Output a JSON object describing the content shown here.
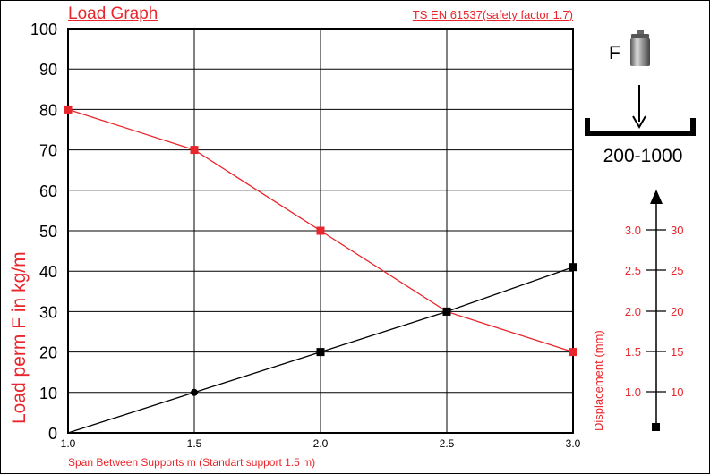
{
  "chart_data": {
    "type": "line",
    "title": "Load Graph",
    "subtitle": "TS EN 61537(safety factor 1.7)",
    "xlabel": "Span Between Supports m (Standart support 1.5 m)",
    "ylabel": "Load perm F in kg/m",
    "xlim": [
      1.0,
      3.0
    ],
    "ylim": [
      0,
      100
    ],
    "x_ticks": [
      "1.0",
      "1.5",
      "2.0",
      "2.5",
      "3.0"
    ],
    "y_ticks": [
      "0",
      "10",
      "20",
      "30",
      "40",
      "50",
      "60",
      "70",
      "80",
      "90",
      "100"
    ],
    "grid": true,
    "series": [
      {
        "color": "#e8262b",
        "x": [
          1.0,
          1.5,
          2.0,
          2.5,
          3.0
        ],
        "y": [
          80,
          70,
          50,
          30,
          20
        ]
      },
      {
        "color": "#000000",
        "x": [
          1.0,
          1.5,
          2.0,
          2.5,
          3.0
        ],
        "y": [
          0,
          10,
          20,
          30,
          41
        ]
      }
    ],
    "displacement_axis": {
      "label": "Displacement (mm)",
      "left_ticks": [
        "1.0",
        "1.5",
        "2.0",
        "2.5",
        "3.0"
      ],
      "right_ticks": [
        "10",
        "15",
        "20",
        "25",
        "30"
      ]
    }
  },
  "diagram": {
    "force_label": "F",
    "weight_icon": "weight-icon",
    "arrow_icon": "arrow-down-icon",
    "range_label": "200-1000"
  },
  "colors": {
    "accent": "#e8262b",
    "text": "#000000"
  }
}
